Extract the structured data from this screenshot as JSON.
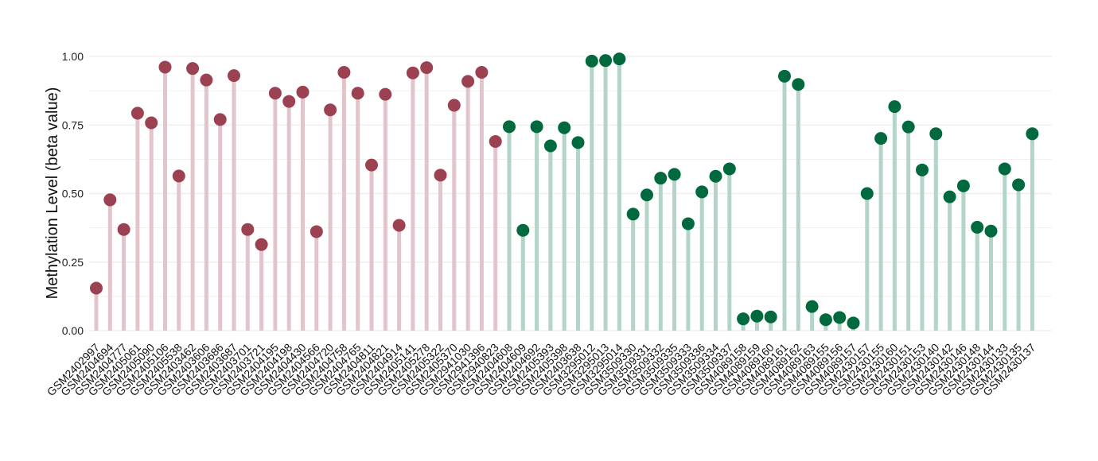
{
  "chart_data": {
    "type": "lollipop",
    "title": "",
    "xlabel": "",
    "ylabel": "Methylation Level (beta value)",
    "ylim": [
      0,
      1
    ],
    "yticks": [
      "0.00",
      "0.25",
      "0.50",
      "0.75",
      "1.00"
    ],
    "ytick_values": [
      0,
      0.25,
      0.5,
      0.75,
      1.0
    ],
    "grid": true,
    "legend": "none",
    "colors": {
      "group1_point": "#9b4152",
      "group1_stem": "#e2c5cb",
      "group2_point": "#006a3e",
      "group2_stem": "#b3d4c7",
      "grid": "#ececec"
    },
    "points": [
      {
        "sample": "GSM2402997",
        "value": 0.155,
        "group": 1
      },
      {
        "sample": "GSM2404694",
        "value": 0.477,
        "group": 1
      },
      {
        "sample": "GSM2404777",
        "value": 0.369,
        "group": 1
      },
      {
        "sample": "GSM2405061",
        "value": 0.793,
        "group": 1
      },
      {
        "sample": "GSM2405090",
        "value": 0.758,
        "group": 1
      },
      {
        "sample": "GSM2405106",
        "value": 0.961,
        "group": 1
      },
      {
        "sample": "GSM2405538",
        "value": 0.564,
        "group": 1
      },
      {
        "sample": "GSM2403462",
        "value": 0.956,
        "group": 1
      },
      {
        "sample": "GSM2403606",
        "value": 0.914,
        "group": 1
      },
      {
        "sample": "GSM2403686",
        "value": 0.77,
        "group": 1
      },
      {
        "sample": "GSM2403687",
        "value": 0.93,
        "group": 1
      },
      {
        "sample": "GSM2403701",
        "value": 0.369,
        "group": 1
      },
      {
        "sample": "GSM2403721",
        "value": 0.314,
        "group": 1
      },
      {
        "sample": "GSM2404195",
        "value": 0.866,
        "group": 1
      },
      {
        "sample": "GSM2404198",
        "value": 0.836,
        "group": 1
      },
      {
        "sample": "GSM2404430",
        "value": 0.87,
        "group": 1
      },
      {
        "sample": "GSM2404566",
        "value": 0.361,
        "group": 1
      },
      {
        "sample": "GSM2404720",
        "value": 0.805,
        "group": 1
      },
      {
        "sample": "GSM2404758",
        "value": 0.942,
        "group": 1
      },
      {
        "sample": "GSM2404765",
        "value": 0.866,
        "group": 1
      },
      {
        "sample": "GSM2404811",
        "value": 0.604,
        "group": 1
      },
      {
        "sample": "GSM2404821",
        "value": 0.862,
        "group": 1
      },
      {
        "sample": "GSM2404914",
        "value": 0.384,
        "group": 1
      },
      {
        "sample": "GSM2405141",
        "value": 0.94,
        "group": 1
      },
      {
        "sample": "GSM2405278",
        "value": 0.959,
        "group": 1
      },
      {
        "sample": "GSM2405322",
        "value": 0.567,
        "group": 1
      },
      {
        "sample": "GSM2405370",
        "value": 0.822,
        "group": 1
      },
      {
        "sample": "GSM2941030",
        "value": 0.909,
        "group": 1
      },
      {
        "sample": "GSM2941396",
        "value": 0.942,
        "group": 1
      },
      {
        "sample": "GSM2940823",
        "value": 0.69,
        "group": 1
      },
      {
        "sample": "GSM2404608",
        "value": 0.744,
        "group": 2
      },
      {
        "sample": "GSM2404609",
        "value": 0.366,
        "group": 2
      },
      {
        "sample": "GSM2404692",
        "value": 0.744,
        "group": 2
      },
      {
        "sample": "GSM2405393",
        "value": 0.674,
        "group": 2
      },
      {
        "sample": "GSM2405398",
        "value": 0.74,
        "group": 2
      },
      {
        "sample": "GSM2403638",
        "value": 0.686,
        "group": 2
      },
      {
        "sample": "GSM3295012",
        "value": 0.983,
        "group": 2
      },
      {
        "sample": "GSM3295013",
        "value": 0.985,
        "group": 2
      },
      {
        "sample": "GSM3295014",
        "value": 0.991,
        "group": 2
      },
      {
        "sample": "GSM3509330",
        "value": 0.425,
        "group": 2
      },
      {
        "sample": "GSM3509331",
        "value": 0.495,
        "group": 2
      },
      {
        "sample": "GSM3509332",
        "value": 0.556,
        "group": 2
      },
      {
        "sample": "GSM3509335",
        "value": 0.57,
        "group": 2
      },
      {
        "sample": "GSM3509333",
        "value": 0.39,
        "group": 2
      },
      {
        "sample": "GSM3509336",
        "value": 0.506,
        "group": 2
      },
      {
        "sample": "GSM3509334",
        "value": 0.563,
        "group": 2
      },
      {
        "sample": "GSM3509337",
        "value": 0.59,
        "group": 2
      },
      {
        "sample": "GSM4089158",
        "value": 0.043,
        "group": 2
      },
      {
        "sample": "GSM4089159",
        "value": 0.053,
        "group": 2
      },
      {
        "sample": "GSM4089160",
        "value": 0.05,
        "group": 2
      },
      {
        "sample": "GSM4089161",
        "value": 0.928,
        "group": 2
      },
      {
        "sample": "GSM4089162",
        "value": 0.898,
        "group": 2
      },
      {
        "sample": "GSM4089163",
        "value": 0.088,
        "group": 2
      },
      {
        "sample": "GSM4089155",
        "value": 0.04,
        "group": 2
      },
      {
        "sample": "GSM4089156",
        "value": 0.048,
        "group": 2
      },
      {
        "sample": "GSM4089157",
        "value": 0.028,
        "group": 2
      },
      {
        "sample": "GSM2430157",
        "value": 0.5,
        "group": 2
      },
      {
        "sample": "GSM2430155",
        "value": 0.701,
        "group": 2
      },
      {
        "sample": "GSM2430160",
        "value": 0.817,
        "group": 2
      },
      {
        "sample": "GSM2430151",
        "value": 0.743,
        "group": 2
      },
      {
        "sample": "GSM2430153",
        "value": 0.586,
        "group": 2
      },
      {
        "sample": "GSM2430140",
        "value": 0.718,
        "group": 2
      },
      {
        "sample": "GSM2430142",
        "value": 0.488,
        "group": 2
      },
      {
        "sample": "GSM2430146",
        "value": 0.528,
        "group": 2
      },
      {
        "sample": "GSM2430148",
        "value": 0.377,
        "group": 2
      },
      {
        "sample": "GSM2430144",
        "value": 0.363,
        "group": 2
      },
      {
        "sample": "GSM2430133",
        "value": 0.59,
        "group": 2
      },
      {
        "sample": "GSM2430135",
        "value": 0.532,
        "group": 2
      },
      {
        "sample": "GSM2430137",
        "value": 0.718,
        "group": 2
      }
    ]
  }
}
